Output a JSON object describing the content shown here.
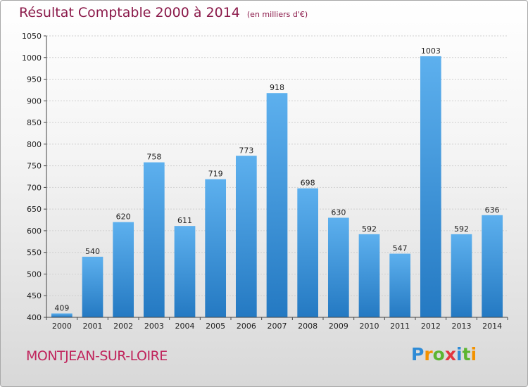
{
  "title": "Résultat Comptable 2000 à 2014",
  "subtitle": "(en milliers d'€)",
  "commune": "MONTJEAN-SUR-LOIRE",
  "logo": {
    "p": "P",
    "r": "r",
    "o": "o",
    "x": "x",
    "i1": "i",
    "t": "t",
    "i2": "i"
  },
  "colors": {
    "bar": "#3a97dd",
    "title": "#8b1a4a",
    "commune": "#c0245c"
  },
  "chart_data": {
    "type": "bar",
    "title": "Résultat Comptable 2000 à 2014",
    "subtitle": "(en milliers d'€)",
    "categories": [
      "2000",
      "2001",
      "2002",
      "2003",
      "2004",
      "2005",
      "2006",
      "2007",
      "2008",
      "2009",
      "2010",
      "2011",
      "2012",
      "2013",
      "2014"
    ],
    "values": [
      409,
      540,
      620,
      758,
      611,
      719,
      773,
      918,
      698,
      630,
      592,
      547,
      1003,
      592,
      636
    ],
    "ylim": [
      400,
      1050
    ],
    "yticks": [
      400,
      450,
      500,
      550,
      600,
      650,
      700,
      750,
      800,
      850,
      900,
      950,
      1000,
      1050
    ],
    "grid": true
  }
}
